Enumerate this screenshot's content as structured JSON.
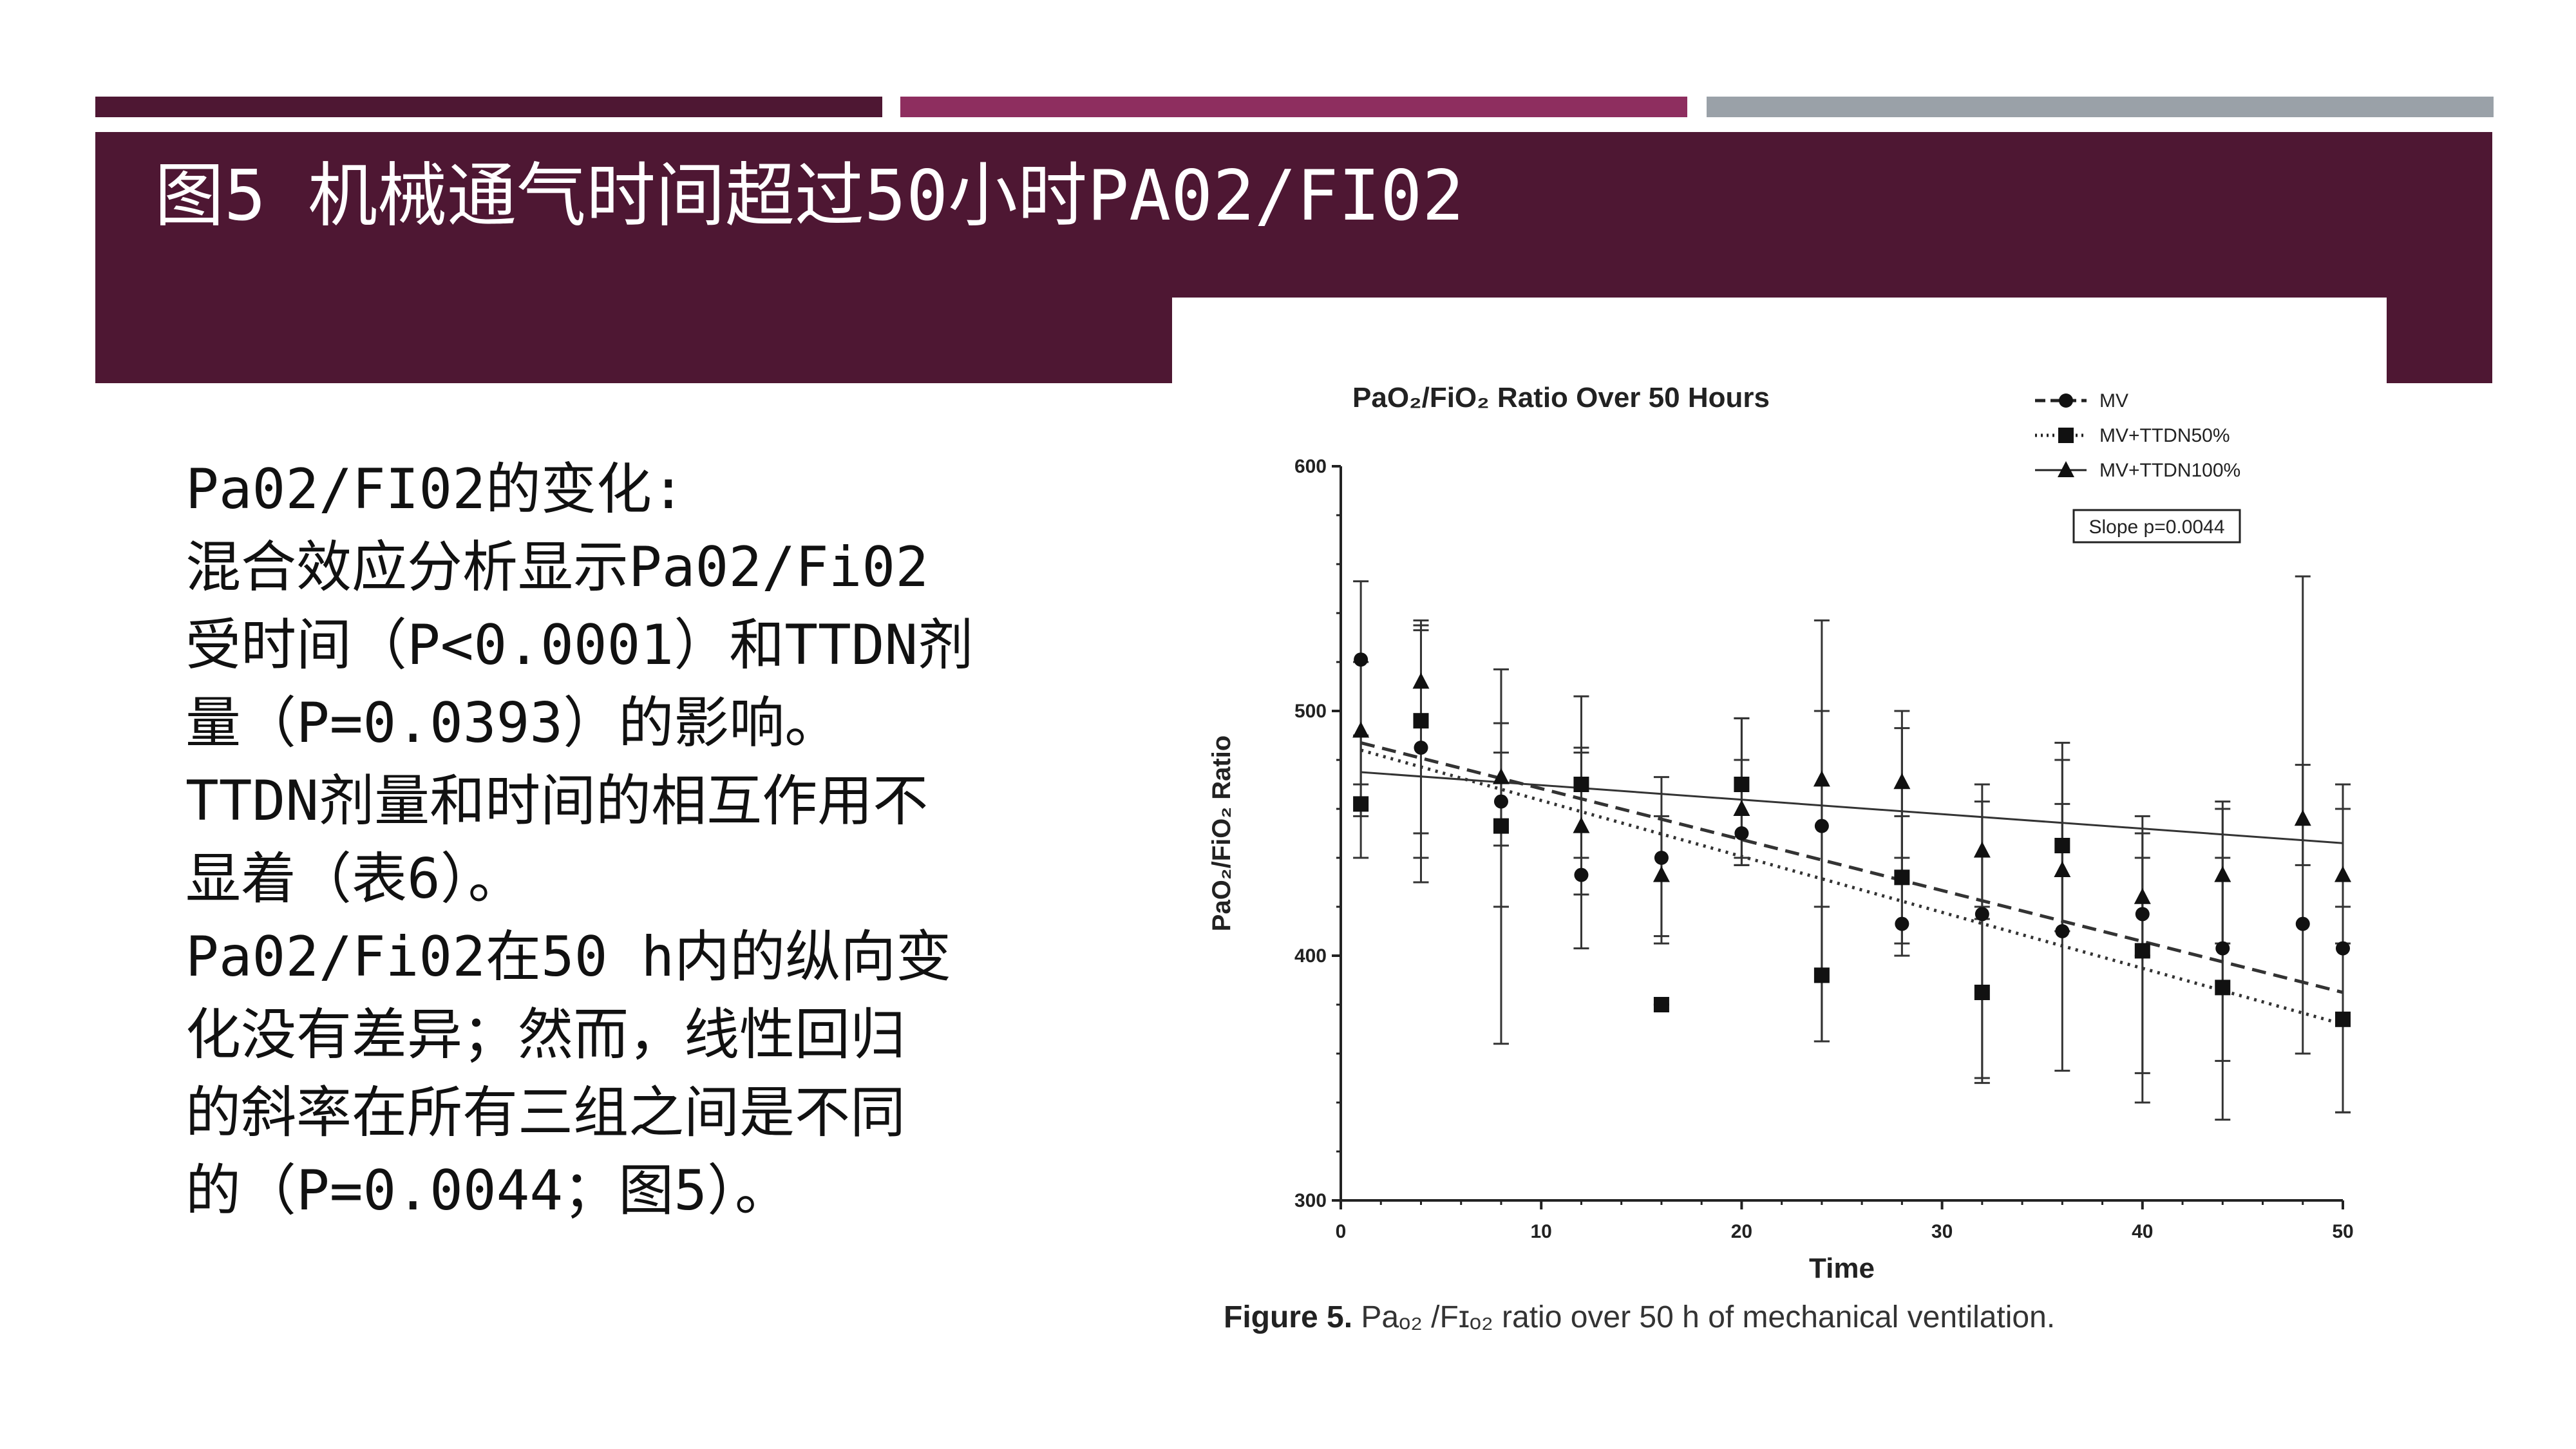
{
  "slide": {
    "title": "图5 机械通气时间超过50小时PA02/FI02",
    "accent_colors": [
      "#4e1733",
      "#8e2e5f",
      "#9aa1a8"
    ],
    "body_lines": [
      "Pa02/FI02的变化:",
      "混合效应分析显示Pa02/Fi02",
      "受时间（P<0.0001）和TTDN剂",
      "量（P=0.0393）的影响。",
      "TTDN剂量和时间的相互作用不",
      "显着（表6）。",
      "Pa02/Fi02在50 h内的纵向变",
      "化没有差异；然而，线性回归",
      "的斜率在所有三组之间是不同",
      "的（P=0.0044；图5）。"
    ],
    "caption_label": "Figure 5.",
    "caption_text": " Paₒ₂ /Fɪₒ₂  ratio over 50 h of mechanical ventilation."
  },
  "chart_data": {
    "type": "scatter",
    "title": "PaO₂/FiO₂ Ratio Over 50 Hours",
    "xlabel": "Time",
    "ylabel": "PaO₂/FiO₂ Ratio",
    "xlim": [
      0,
      50
    ],
    "ylim": [
      300,
      600
    ],
    "xticks": [
      0,
      10,
      20,
      30,
      40,
      50
    ],
    "yticks": [
      300,
      400,
      500,
      600
    ],
    "legend_position": "top-right",
    "annotation": "Slope p=0.0044",
    "series": [
      {
        "name": "MV",
        "marker": "circle",
        "line": "dashed",
        "x": [
          1,
          4,
          8,
          12,
          16,
          20,
          24,
          28,
          32,
          36,
          40,
          44,
          48,
          50
        ],
        "y": [
          521,
          485,
          463,
          433,
          440,
          450,
          453,
          413,
          417,
          410,
          417,
          403,
          413,
          403
        ],
        "err_low": [
          457,
          440,
          364,
          403,
          408,
          437,
          365,
          400,
          350,
          353,
          352,
          357,
          360,
          336
        ],
        "err_high": [
          553,
          535,
          517,
          485,
          473,
          497,
          537,
          493,
          463,
          487,
          457,
          463,
          555,
          470
        ],
        "trend": [
          487,
          385
        ]
      },
      {
        "name": "MV+TTDN50%",
        "marker": "square",
        "line": "dotted",
        "x": [
          1,
          4,
          8,
          12,
          16,
          20,
          24,
          28,
          32,
          36,
          40,
          44,
          50
        ],
        "y": [
          462,
          496,
          453,
          470,
          380,
          470,
          392,
          432,
          385,
          445,
          402,
          387,
          374
        ],
        "err_low": [
          440,
          430,
          420,
          440,
          380,
          440,
          365,
          405,
          348,
          410,
          340,
          333,
          336
        ],
        "err_high": [
          490,
          533,
          483,
          506,
          380,
          497,
          420,
          457,
          420,
          480,
          440,
          440,
          420
        ],
        "trend": [
          484,
          372
        ]
      },
      {
        "name": "MV+TTDN100%",
        "marker": "triangle",
        "line": "solid",
        "x": [
          1,
          4,
          8,
          12,
          16,
          20,
          24,
          28,
          32,
          36,
          40,
          44,
          48,
          50
        ],
        "y": [
          492,
          512,
          473,
          453,
          433,
          460,
          472,
          471,
          443,
          435,
          424,
          433,
          456,
          433
        ],
        "err_low": [
          470,
          450,
          445,
          425,
          405,
          437,
          420,
          440,
          415,
          410,
          400,
          405,
          437,
          405
        ],
        "err_high": [
          520,
          537,
          495,
          483,
          457,
          480,
          500,
          500,
          470,
          462,
          450,
          460,
          478,
          460
        ],
        "trend": [
          475,
          446
        ]
      }
    ]
  }
}
